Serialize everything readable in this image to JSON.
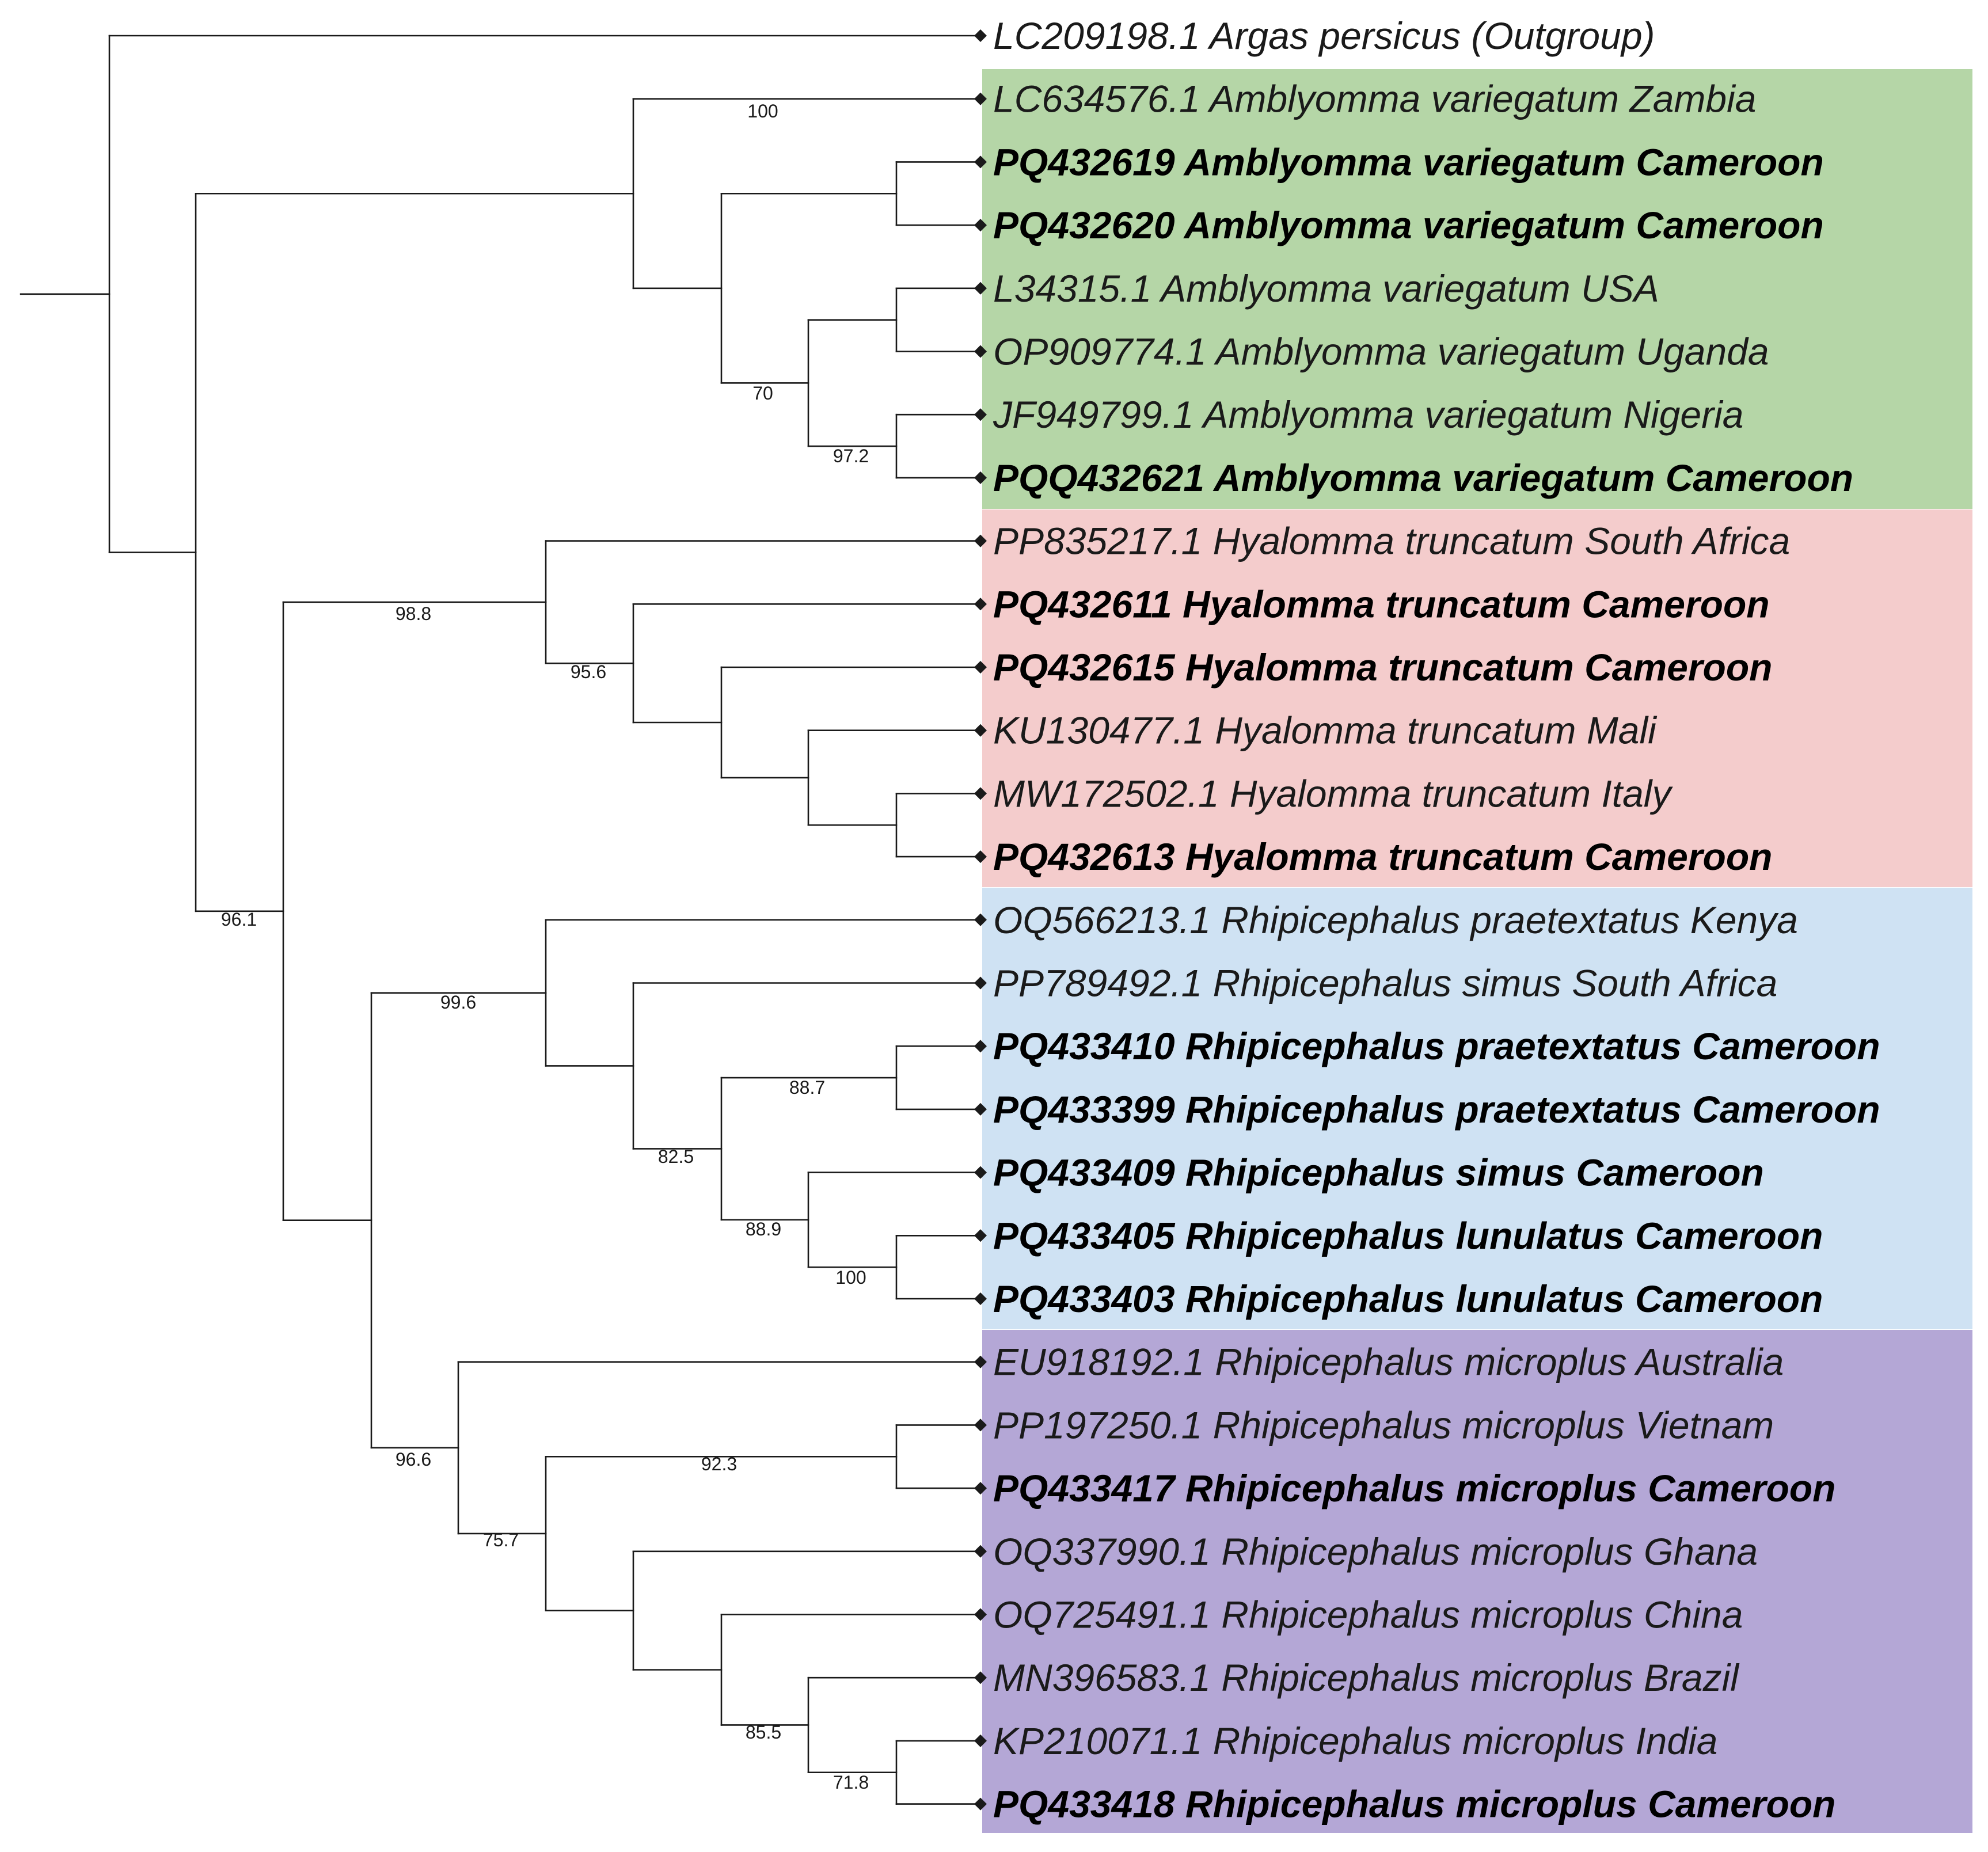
{
  "tree": {
    "clade_colors": {
      "amblyomma": "#b5d6a7",
      "hyalomma": "#f4cccc",
      "rhipicephalus_main": "#cfe2f3",
      "rhipicephalus_microplus": "#b4a7d6"
    },
    "taxa": [
      {
        "id": "t0",
        "label": "LC209198.1 Argas persicus (Outgroup)",
        "bold": false
      },
      {
        "id": "t1",
        "label": "LC634576.1 Amblyomma variegatum Zambia",
        "bold": false
      },
      {
        "id": "t2",
        "label": "PQ432619 Amblyomma variegatum Cameroon",
        "bold": true
      },
      {
        "id": "t3",
        "label": "PQ432620 Amblyomma variegatum Cameroon",
        "bold": true
      },
      {
        "id": "t4",
        "label": "L34315.1 Amblyomma variegatum USA",
        "bold": false
      },
      {
        "id": "t5",
        "label": "OP909774.1 Amblyomma variegatum Uganda",
        "bold": false
      },
      {
        "id": "t6",
        "label": "JF949799.1 Amblyomma variegatum Nigeria",
        "bold": false
      },
      {
        "id": "t7",
        "label": "PQQ432621 Amblyomma variegatum Cameroon",
        "bold": true
      },
      {
        "id": "t8",
        "label": "PP835217.1 Hyalomma truncatum South Africa",
        "bold": false
      },
      {
        "id": "t9",
        "label": "PQ432611 Hyalomma truncatum Cameroon",
        "bold": true
      },
      {
        "id": "t10",
        "label": "PQ432615 Hyalomma truncatum Cameroon",
        "bold": true
      },
      {
        "id": "t11",
        "label": "KU130477.1 Hyalomma truncatum Mali",
        "bold": false
      },
      {
        "id": "t12",
        "label": "MW172502.1 Hyalomma truncatum Italy",
        "bold": false
      },
      {
        "id": "t13",
        "label": "PQ432613 Hyalomma truncatum Cameroon",
        "bold": true
      },
      {
        "id": "t14",
        "label": "OQ566213.1 Rhipicephalus praetextatus Kenya",
        "bold": false
      },
      {
        "id": "t15",
        "label": "PP789492.1 Rhipicephalus simus South Africa",
        "bold": false
      },
      {
        "id": "t16",
        "label": "PQ433410 Rhipicephalus praetextatus Cameroon",
        "bold": true
      },
      {
        "id": "t17",
        "label": "PQ433399 Rhipicephalus praetextatus Cameroon",
        "bold": true
      },
      {
        "id": "t18",
        "label": "PQ433409 Rhipicephalus simus Cameroon",
        "bold": true
      },
      {
        "id": "t19",
        "label": "PQ433405 Rhipicephalus lunulatus Cameroon",
        "bold": true
      },
      {
        "id": "t20",
        "label": "PQ433403 Rhipicephalus lunulatus Cameroon",
        "bold": true
      },
      {
        "id": "t21",
        "label": "EU918192.1 Rhipicephalus microplus Australia",
        "bold": false
      },
      {
        "id": "t22",
        "label": "PP197250.1 Rhipicephalus microplus Vietnam",
        "bold": false
      },
      {
        "id": "t23",
        "label": "PQ433417 Rhipicephalus microplus Cameroon",
        "bold": true
      },
      {
        "id": "t24",
        "label": "OQ337990.1 Rhipicephalus microplus Ghana",
        "bold": false
      },
      {
        "id": "t25",
        "label": "OQ725491.1 Rhipicephalus microplus China",
        "bold": false
      },
      {
        "id": "t26",
        "label": "MN396583.1 Rhipicephalus microplus Brazil",
        "bold": false
      },
      {
        "id": "t27",
        "label": "KP210071.1 Rhipicephalus microplus India",
        "bold": false
      },
      {
        "id": "t28",
        "label": "PQ433418 Rhipicephalus microplus Cameroon",
        "bold": true
      }
    ],
    "support_values": {
      "n_amb_root": "100",
      "n_amb_sub": "70",
      "n_amb_ng": "97.2",
      "n_hyal": "98.8",
      "n_hyal_sub": "95.6",
      "n_ingroup": "96.1",
      "n_rhip_a": "99.6",
      "n_rhip_a2": "82.5",
      "n_prae": "88.7",
      "n_simlun": "88.9",
      "n_lun": "100",
      "n_rhip": "96.6",
      "n_micro": "75.7",
      "n_micro_vn": "92.3",
      "n_micro_sub2": "85.5",
      "n_micro_in": "71.8"
    }
  }
}
